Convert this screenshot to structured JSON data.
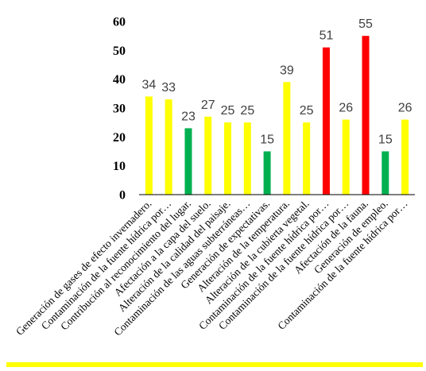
{
  "chart_data": {
    "type": "bar",
    "categories": [
      "Generación de gases de efecto invernadero.",
      "Contaminación de la fuente hídrica por…",
      "Contribución al reconocimiento del lugar.",
      "Afectación a la capa del suelo.",
      "Alteración de la calidad del paisaje.",
      "Contaminación de las aguas subterráneas…",
      "Generación de expectativas.",
      "Alteración de la temperatura.",
      "Alteración de la cubierta vegetal.",
      "Contaminación de la fuente hídrica por…",
      "Contaminación de la fuente hídrica por…",
      "Afectación de la fauna.",
      "Generación de empleo.",
      "Contaminación de la fuente hídrica por…"
    ],
    "values": [
      34,
      33,
      23,
      27,
      25,
      25,
      15,
      39,
      25,
      51,
      26,
      55,
      15,
      26
    ],
    "bar_colors": [
      "#ffff00",
      "#ffff00",
      "#00b050",
      "#ffff00",
      "#ffff00",
      "#ffff00",
      "#00b050",
      "#ffff00",
      "#ffff00",
      "#ff0000",
      "#ffff00",
      "#ff0000",
      "#00b050",
      "#ffff00"
    ],
    "data_labels": [
      "34",
      "33",
      "23",
      "27",
      "25",
      "25",
      "15",
      "39",
      "25",
      "51",
      "26",
      "55",
      "15",
      "26"
    ],
    "yticks": [
      "0",
      "10",
      "20",
      "30",
      "40",
      "50",
      "60"
    ],
    "ylim": [
      0,
      60
    ],
    "grid": false,
    "legend": "none",
    "title": "",
    "xlabel": "",
    "ylabel": ""
  },
  "colors": {
    "axis": "#000000",
    "bottom_rule": "#ffff00",
    "data_label": "#3f3f3f"
  }
}
